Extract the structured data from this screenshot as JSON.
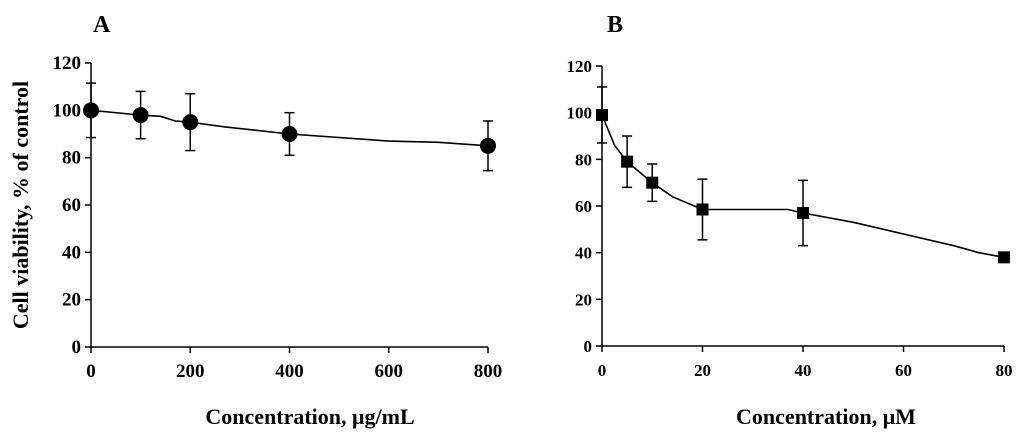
{
  "chart_data": [
    {
      "panel": "A",
      "type": "line",
      "marker": "circle",
      "ylabel": "Cell viability, % of control",
      "xlabel": "Concentration, μg/mL",
      "xlim": [
        0,
        800
      ],
      "ylim": [
        0,
        120
      ],
      "xticks": [
        "0",
        "200",
        "400",
        "600",
        "800"
      ],
      "yticks": [
        "0",
        "20",
        "40",
        "60",
        "80",
        "100",
        "120"
      ],
      "series": [
        {
          "name": "Cell viability",
          "x": [
            0,
            100,
            200,
            400,
            800
          ],
          "y": [
            100,
            98,
            95,
            90,
            85
          ],
          "error": [
            11.5,
            10,
            12,
            9,
            10.5
          ]
        }
      ],
      "curve": {
        "x": [
          0,
          100,
          140,
          170,
          200,
          270,
          400,
          600,
          700,
          800
        ],
        "y": [
          100,
          98,
          97.5,
          95.5,
          95,
          93,
          90,
          87,
          86.5,
          85
        ]
      }
    },
    {
      "panel": "B",
      "type": "line",
      "marker": "square",
      "ylabel": "",
      "xlabel": "Concentration, μM",
      "xlim": [
        0,
        80
      ],
      "ylim": [
        0,
        120
      ],
      "xticks": [
        "0",
        "20",
        "40",
        "60",
        "80"
      ],
      "yticks": [
        "0",
        "20",
        "40",
        "60",
        "80",
        "100",
        "120"
      ],
      "series": [
        {
          "name": "Cell viability",
          "x": [
            0,
            5,
            10,
            20,
            40,
            80
          ],
          "y": [
            99,
            79,
            70,
            58.5,
            57,
            38
          ],
          "error": [
            12,
            11,
            8,
            13,
            14,
            1.5
          ]
        }
      ],
      "curve": {
        "x": [
          0,
          2.5,
          5,
          10,
          14,
          20,
          37,
          40,
          50,
          60,
          70,
          75,
          80
        ],
        "y": [
          99,
          86,
          79,
          70,
          64,
          58.5,
          58.5,
          57,
          53,
          48,
          43,
          40,
          38
        ]
      }
    }
  ]
}
